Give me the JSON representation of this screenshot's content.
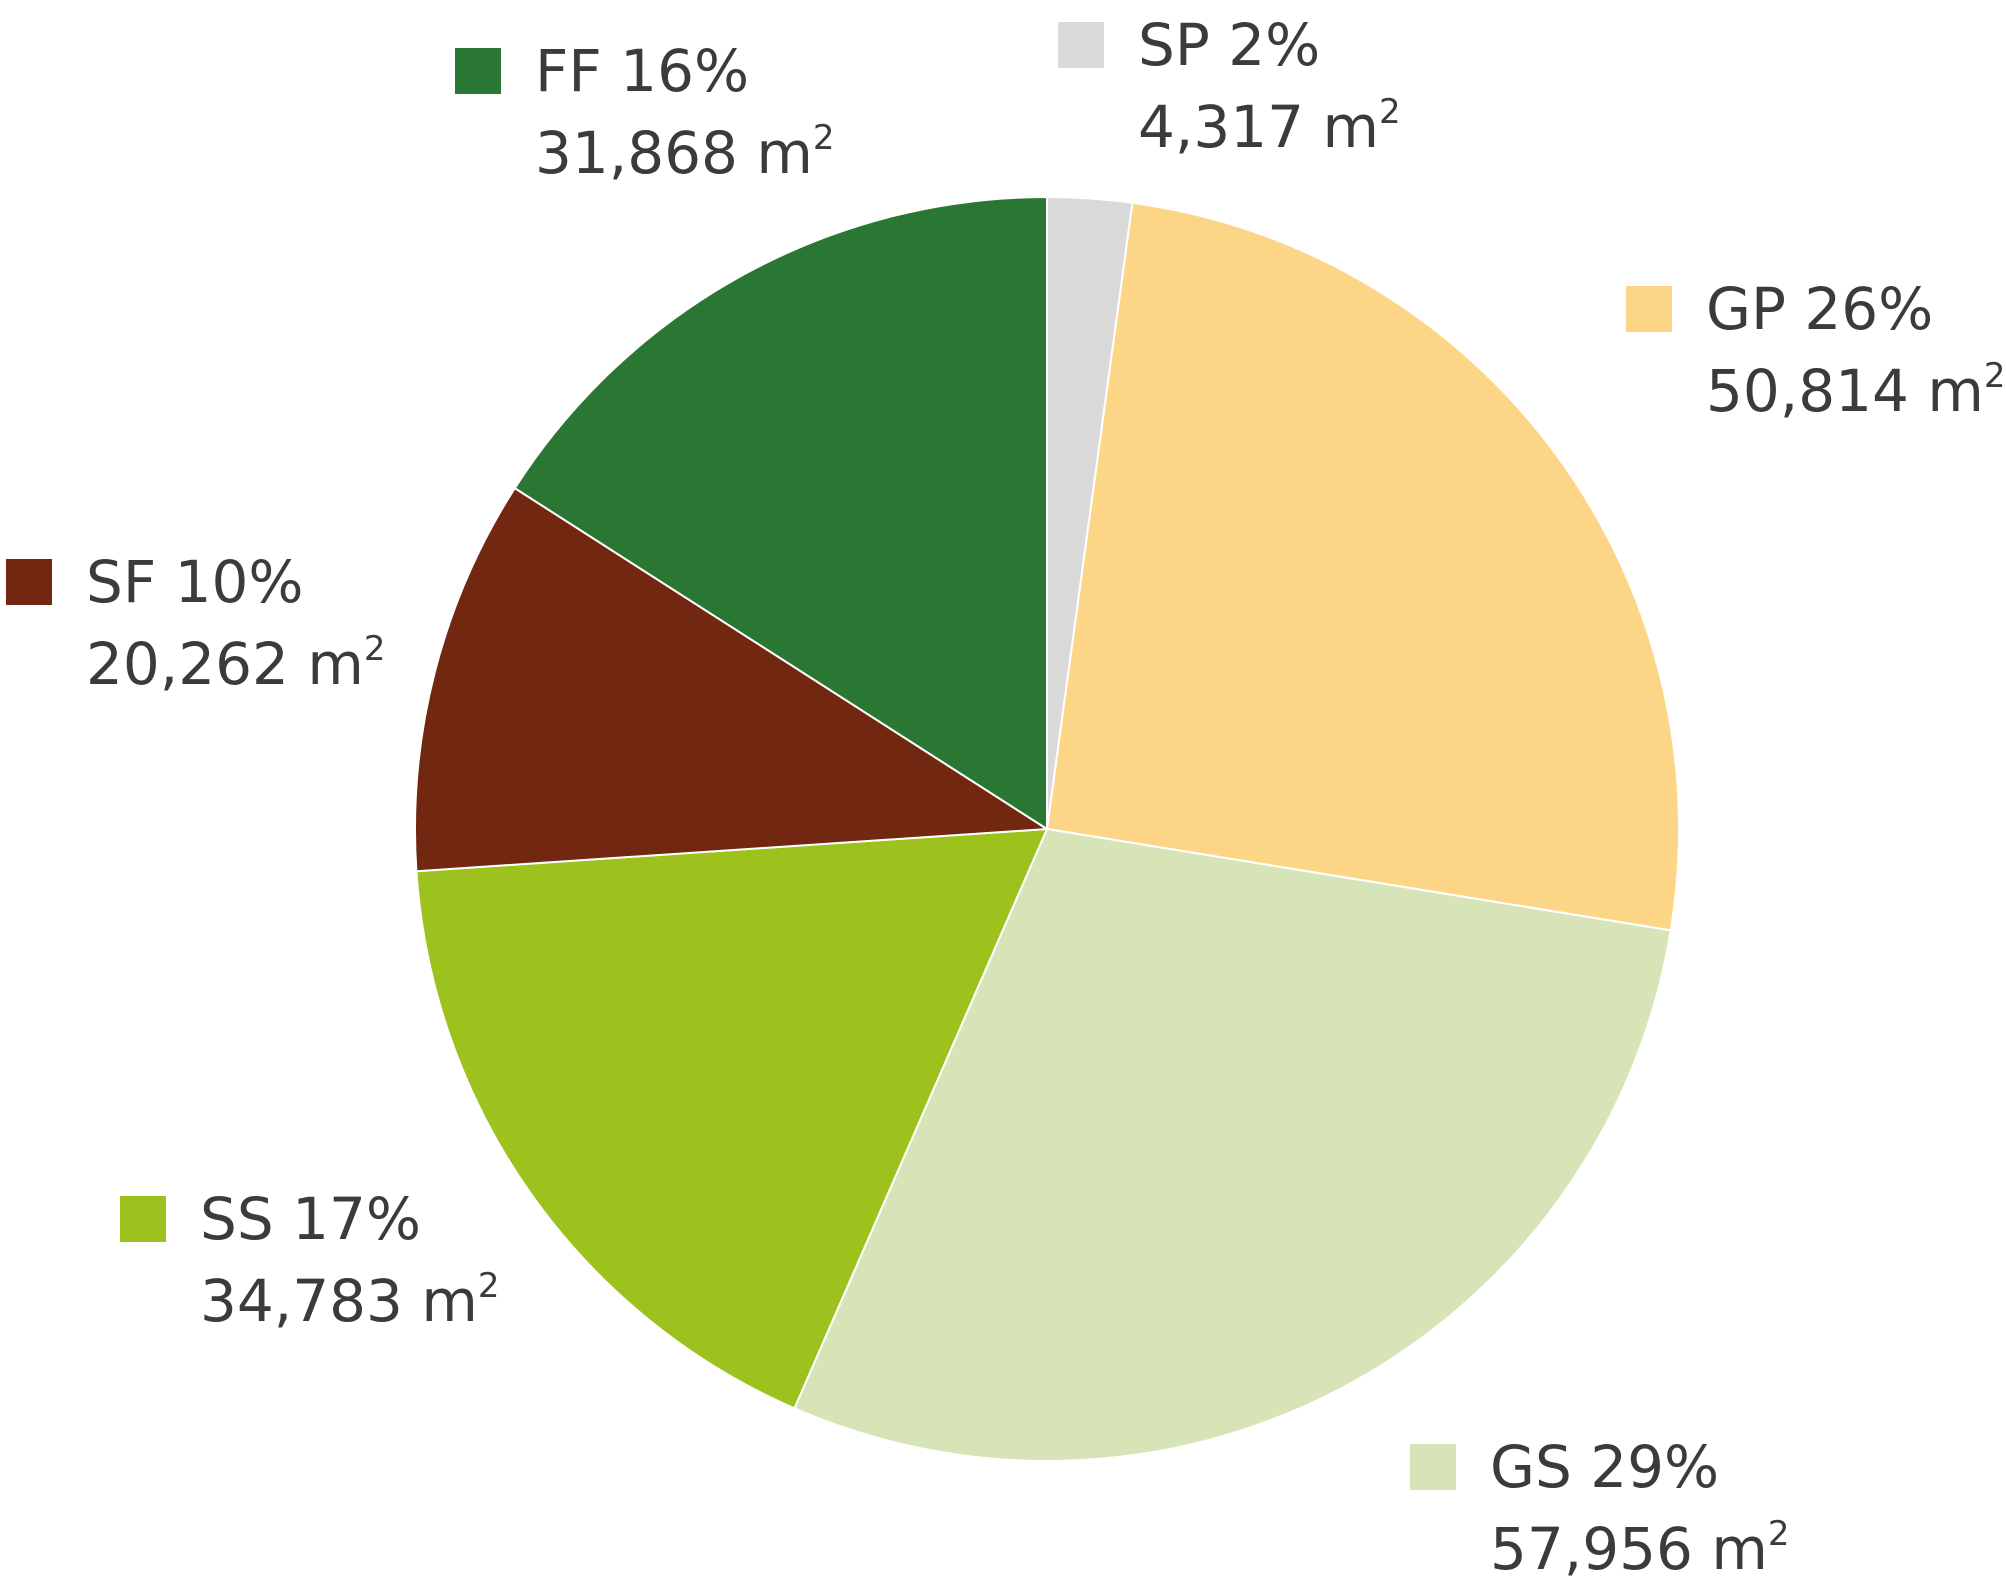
{
  "chart_data": {
    "type": "pie",
    "title": "",
    "start": "top, clockwise",
    "slices": [
      {
        "id": "sp",
        "label": "SP",
        "percent_label": "2%",
        "area_label": "4,317 m",
        "unit_sup": "2",
        "value": 4317,
        "color": "#d9d9d9"
      },
      {
        "id": "gp",
        "label": "GP",
        "percent_label": "26%",
        "area_label": "50,814 m",
        "unit_sup": "2",
        "value": 50814,
        "color": "#fdd587"
      },
      {
        "id": "gs",
        "label": "GS",
        "percent_label": "29%",
        "area_label": "57,956 m",
        "unit_sup": "2",
        "value": 57956,
        "color": "#d6e4b8"
      },
      {
        "id": "ss",
        "label": "SS",
        "percent_label": "17%",
        "area_label": "34,783 m",
        "unit_sup": "2",
        "value": 34783,
        "color": "#9dc11d"
      },
      {
        "id": "sf",
        "label": "SF",
        "percent_label": "10%",
        "area_label": "20,262 m",
        "unit_sup": "2",
        "value": 20262,
        "color": "#722810"
      },
      {
        "id": "ff",
        "label": "FF",
        "percent_label": "16%",
        "area_label": "31,868 m",
        "unit_sup": "2",
        "value": 31868,
        "color": "#2a7633"
      }
    ]
  }
}
